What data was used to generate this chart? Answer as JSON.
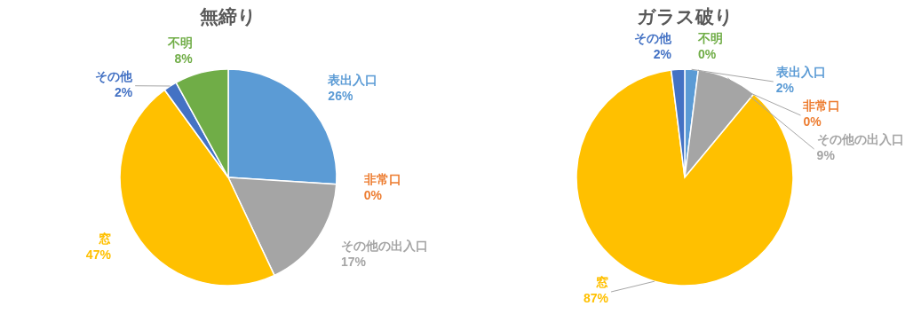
{
  "chart_data": [
    {
      "type": "pie",
      "title": "無締り",
      "categories": [
        "表出入口",
        "非常口",
        "その他の出入口",
        "窓",
        "その他",
        "不明"
      ],
      "values": [
        26,
        0,
        17,
        47,
        2,
        8
      ],
      "value_labels": [
        "26%",
        "0%",
        "17%",
        "47%",
        "2%",
        "8%"
      ],
      "colors": [
        "#5b9bd5",
        "#ed7d31",
        "#a5a5a5",
        "#ffc000",
        "#4472c4",
        "#70ad47"
      ]
    },
    {
      "type": "pie",
      "title": "ガラス破り",
      "categories": [
        "表出入口",
        "非常口",
        "その他の出入口",
        "窓",
        "その他",
        "不明"
      ],
      "values": [
        2,
        0,
        9,
        87,
        2,
        0
      ],
      "value_labels": [
        "2%",
        "0%",
        "9%",
        "87%",
        "2%",
        "0%"
      ],
      "colors": [
        "#5b9bd5",
        "#ed7d31",
        "#a5a5a5",
        "#ffc000",
        "#4472c4",
        "#70ad47"
      ]
    }
  ]
}
